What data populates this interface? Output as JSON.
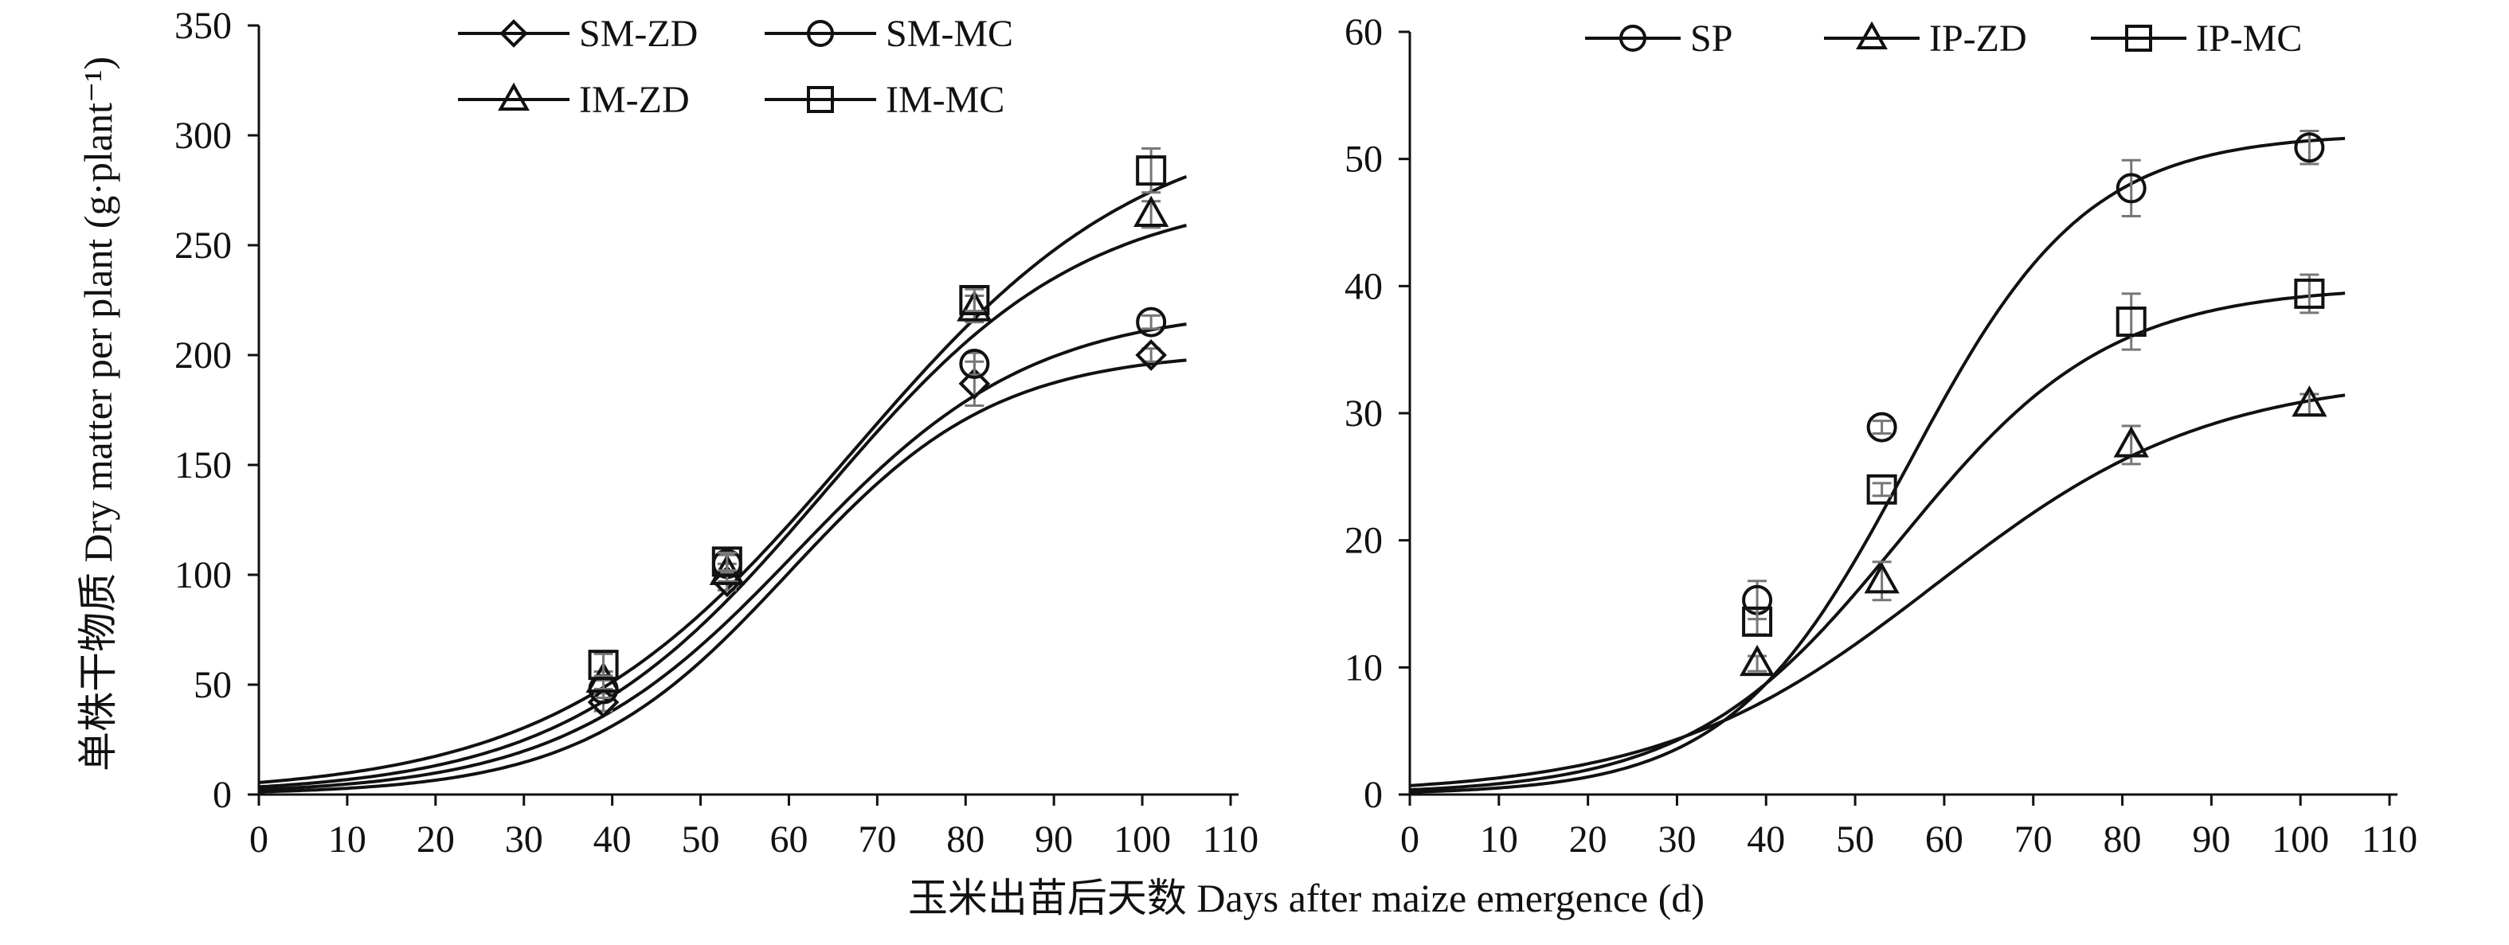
{
  "figure": {
    "shared_xlabel": "玉米出苗后天数 Days after maize emergence (d)",
    "shared_ylabel": "单株干物质 Dry matter per plant (g·plant⁻¹)"
  },
  "chart_data": [
    {
      "type": "line",
      "panel": "left",
      "xlim": [
        0,
        110
      ],
      "ylim": [
        0,
        350
      ],
      "xticks": [
        0,
        10,
        20,
        30,
        40,
        50,
        60,
        70,
        80,
        90,
        100,
        110
      ],
      "yticks": [
        0,
        50,
        100,
        150,
        200,
        250,
        300,
        350
      ],
      "legend_position": "top",
      "grid": false,
      "series": [
        {
          "name": "SM-ZD",
          "marker": "diamond",
          "points": [
            {
              "x": 39,
              "y": 42,
              "err": 4
            },
            {
              "x": 53,
              "y": 97,
              "err": 4
            },
            {
              "x": 81,
              "y": 187,
              "err": 10
            },
            {
              "x": 101,
              "y": 200,
              "err": 3
            }
          ],
          "curve": {
            "K": 202,
            "r": 0.085,
            "t0": 60
          }
        },
        {
          "name": "SM-MC",
          "marker": "circle",
          "points": [
            {
              "x": 39,
              "y": 48,
              "err": 4
            },
            {
              "x": 53,
              "y": 105,
              "err": 4
            },
            {
              "x": 81,
              "y": 196,
              "err": 5
            },
            {
              "x": 101,
              "y": 215,
              "err": 3
            }
          ],
          "curve": {
            "K": 222,
            "r": 0.075,
            "t0": 61
          }
        },
        {
          "name": "IM-ZD",
          "marker": "triangle",
          "points": [
            {
              "x": 39,
              "y": 52,
              "err": 4
            },
            {
              "x": 53,
              "y": 101,
              "err": 4
            },
            {
              "x": 81,
              "y": 221,
              "err": 6
            },
            {
              "x": 101,
              "y": 264,
              "err": 6
            }
          ],
          "curve": {
            "K": 275,
            "r": 0.068,
            "t0": 64
          }
        },
        {
          "name": "IM-MC",
          "marker": "square",
          "points": [
            {
              "x": 39,
              "y": 59,
              "err": 5
            },
            {
              "x": 53,
              "y": 106,
              "err": 4
            },
            {
              "x": 81,
              "y": 225,
              "err": 5
            },
            {
              "x": 101,
              "y": 284,
              "err": 10
            }
          ],
          "curve": {
            "K": 310,
            "r": 0.06,
            "t0": 67
          }
        }
      ]
    },
    {
      "type": "line",
      "panel": "right",
      "xlim": [
        0,
        110
      ],
      "ylim": [
        0,
        60
      ],
      "xticks": [
        0,
        10,
        20,
        30,
        40,
        50,
        60,
        70,
        80,
        90,
        100,
        110
      ],
      "yticks": [
        0,
        10,
        20,
        30,
        40,
        50,
        60
      ],
      "legend_position": "top",
      "grid": false,
      "series": [
        {
          "name": "SP",
          "marker": "circle",
          "points": [
            {
              "x": 39,
              "y": 15.3,
              "err": 1.5
            },
            {
              "x": 53,
              "y": 28.9,
              "err": 0.5
            },
            {
              "x": 81,
              "y": 47.7,
              "err": 2.2
            },
            {
              "x": 101,
              "y": 50.9,
              "err": 1.3
            }
          ],
          "curve": {
            "K": 52,
            "r": 0.1,
            "t0": 56
          }
        },
        {
          "name": "IP-ZD",
          "marker": "triangle",
          "points": [
            {
              "x": 39,
              "y": 10.3,
              "err": 0.6
            },
            {
              "x": 53,
              "y": 16.8,
              "err": 1.5
            },
            {
              "x": 81,
              "y": 27.5,
              "err": 1.5
            },
            {
              "x": 101,
              "y": 30.7,
              "err": 0.8
            }
          ],
          "curve": {
            "K": 33,
            "r": 0.065,
            "t0": 59
          }
        },
        {
          "name": "IP-MC",
          "marker": "square",
          "points": [
            {
              "x": 39,
              "y": 13.6,
              "err": 1.0
            },
            {
              "x": 53,
              "y": 24.0,
              "err": 0.5
            },
            {
              "x": 81,
              "y": 37.2,
              "err": 2.2
            },
            {
              "x": 101,
              "y": 39.4,
              "err": 1.5
            }
          ],
          "curve": {
            "K": 40,
            "r": 0.085,
            "t0": 55
          }
        }
      ]
    }
  ]
}
